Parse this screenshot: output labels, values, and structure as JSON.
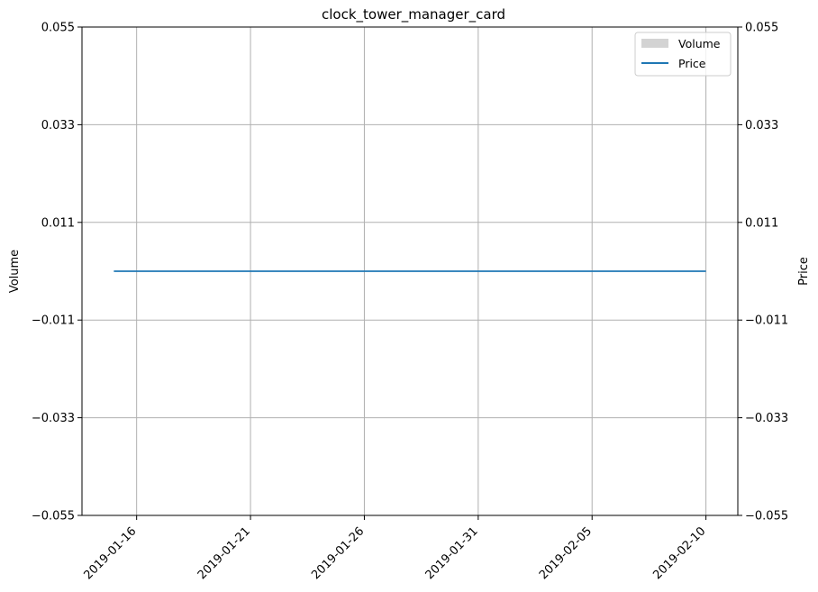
{
  "chart_data": {
    "type": "bar",
    "title": "clock_tower_manager_card",
    "xlabel": "",
    "ylabel": "Volume",
    "y2label": "Price",
    "x_tick_labels": [
      "2019-01-16",
      "2019-01-21",
      "2019-01-26",
      "2019-01-31",
      "2019-02-05",
      "2019-02-10"
    ],
    "x_ticks": [
      "2019-01-16",
      "2019-01-21",
      "2019-01-26",
      "2019-01-31",
      "2019-02-05",
      "2019-02-10"
    ],
    "x_range": [
      "2019-01-14",
      "2019-02-10"
    ],
    "ylim": [
      -0.055,
      0.055
    ],
    "y_ticks": [
      -0.055,
      -0.033,
      -0.011,
      0.011,
      0.033,
      0.055
    ],
    "y_tick_labels": [
      "−0.055",
      "−0.033",
      "−0.011",
      "0.011",
      "0.033",
      "0.055"
    ],
    "y2lim": [
      -0.055,
      0.055
    ],
    "y2_ticks": [
      -0.055,
      -0.033,
      -0.011,
      0.011,
      0.033,
      0.055
    ],
    "y2_tick_labels": [
      "−0.055",
      "−0.033",
      "−0.011",
      "0.011",
      "0.033",
      "0.055"
    ],
    "grid": true,
    "legend_position": "top-right",
    "series": [
      {
        "name": "Volume",
        "type": "bar",
        "axis": "left",
        "color": "#d3d3d3",
        "x": [
          "2019-01-15",
          "2019-02-10"
        ],
        "values": [
          0,
          0
        ]
      },
      {
        "name": "Price",
        "type": "line",
        "axis": "right",
        "color": "#1f77b4",
        "x": [
          "2019-01-15",
          "2019-02-10"
        ],
        "values": [
          0,
          0
        ]
      }
    ]
  }
}
